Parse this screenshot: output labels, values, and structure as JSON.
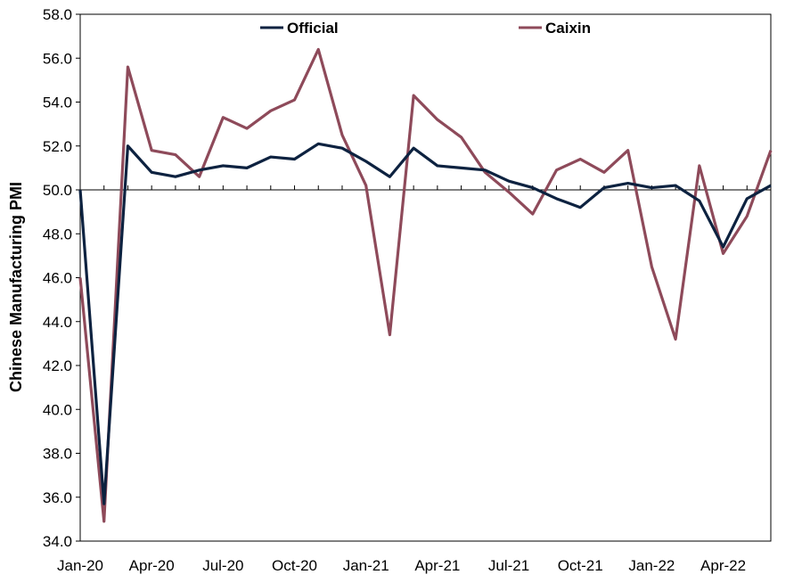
{
  "chart_data": {
    "type": "line",
    "ylabel": "Chinese Manufacturing PMI",
    "ylim": [
      34.0,
      58.0
    ],
    "y_ticks": [
      "34.0",
      "36.0",
      "38.0",
      "40.0",
      "42.0",
      "44.0",
      "46.0",
      "48.0",
      "50.0",
      "52.0",
      "54.0",
      "56.0",
      "58.0"
    ],
    "x_tick_labels": [
      "Jan-20",
      "Apr-20",
      "Jul-20",
      "Oct-20",
      "Jan-21",
      "Apr-21",
      "Jul-21",
      "Oct-21",
      "Jan-22",
      "Apr-22"
    ],
    "reference_line": 50.0,
    "grid": false,
    "legend_position": "top",
    "x": [
      "Jan-20",
      "Feb-20",
      "Mar-20",
      "Apr-20",
      "May-20",
      "Jun-20",
      "Jul-20",
      "Aug-20",
      "Sep-20",
      "Oct-20",
      "Nov-20",
      "Dec-20",
      "Jan-21",
      "Feb-21",
      "Mar-21",
      "Apr-21",
      "May-21",
      "Jun-21",
      "Jul-21",
      "Aug-21",
      "Sep-21",
      "Oct-21",
      "Nov-21",
      "Dec-21",
      "Jan-22",
      "Feb-22",
      "Mar-22",
      "Apr-22",
      "May-22",
      "Jun-22"
    ],
    "series": [
      {
        "name": "Official",
        "color": "#0d2240",
        "values": [
          50.0,
          35.7,
          52.0,
          50.8,
          50.6,
          50.9,
          51.1,
          51.0,
          51.5,
          51.4,
          52.1,
          51.9,
          51.3,
          50.6,
          51.9,
          51.1,
          51.0,
          50.9,
          50.4,
          50.1,
          49.6,
          49.2,
          50.1,
          50.3,
          50.1,
          50.2,
          49.5,
          47.4,
          49.6,
          50.2
        ]
      },
      {
        "name": "Caixin",
        "color": "#8e4a5a",
        "values": [
          46.0,
          34.9,
          55.6,
          51.8,
          51.6,
          50.6,
          53.3,
          52.8,
          53.6,
          54.1,
          56.4,
          52.5,
          50.2,
          43.4,
          54.3,
          53.2,
          52.4,
          50.8,
          49.9,
          48.9,
          50.9,
          51.4,
          50.8,
          51.8,
          46.5,
          43.2,
          51.1,
          47.1,
          48.8,
          51.8
        ]
      }
    ]
  }
}
